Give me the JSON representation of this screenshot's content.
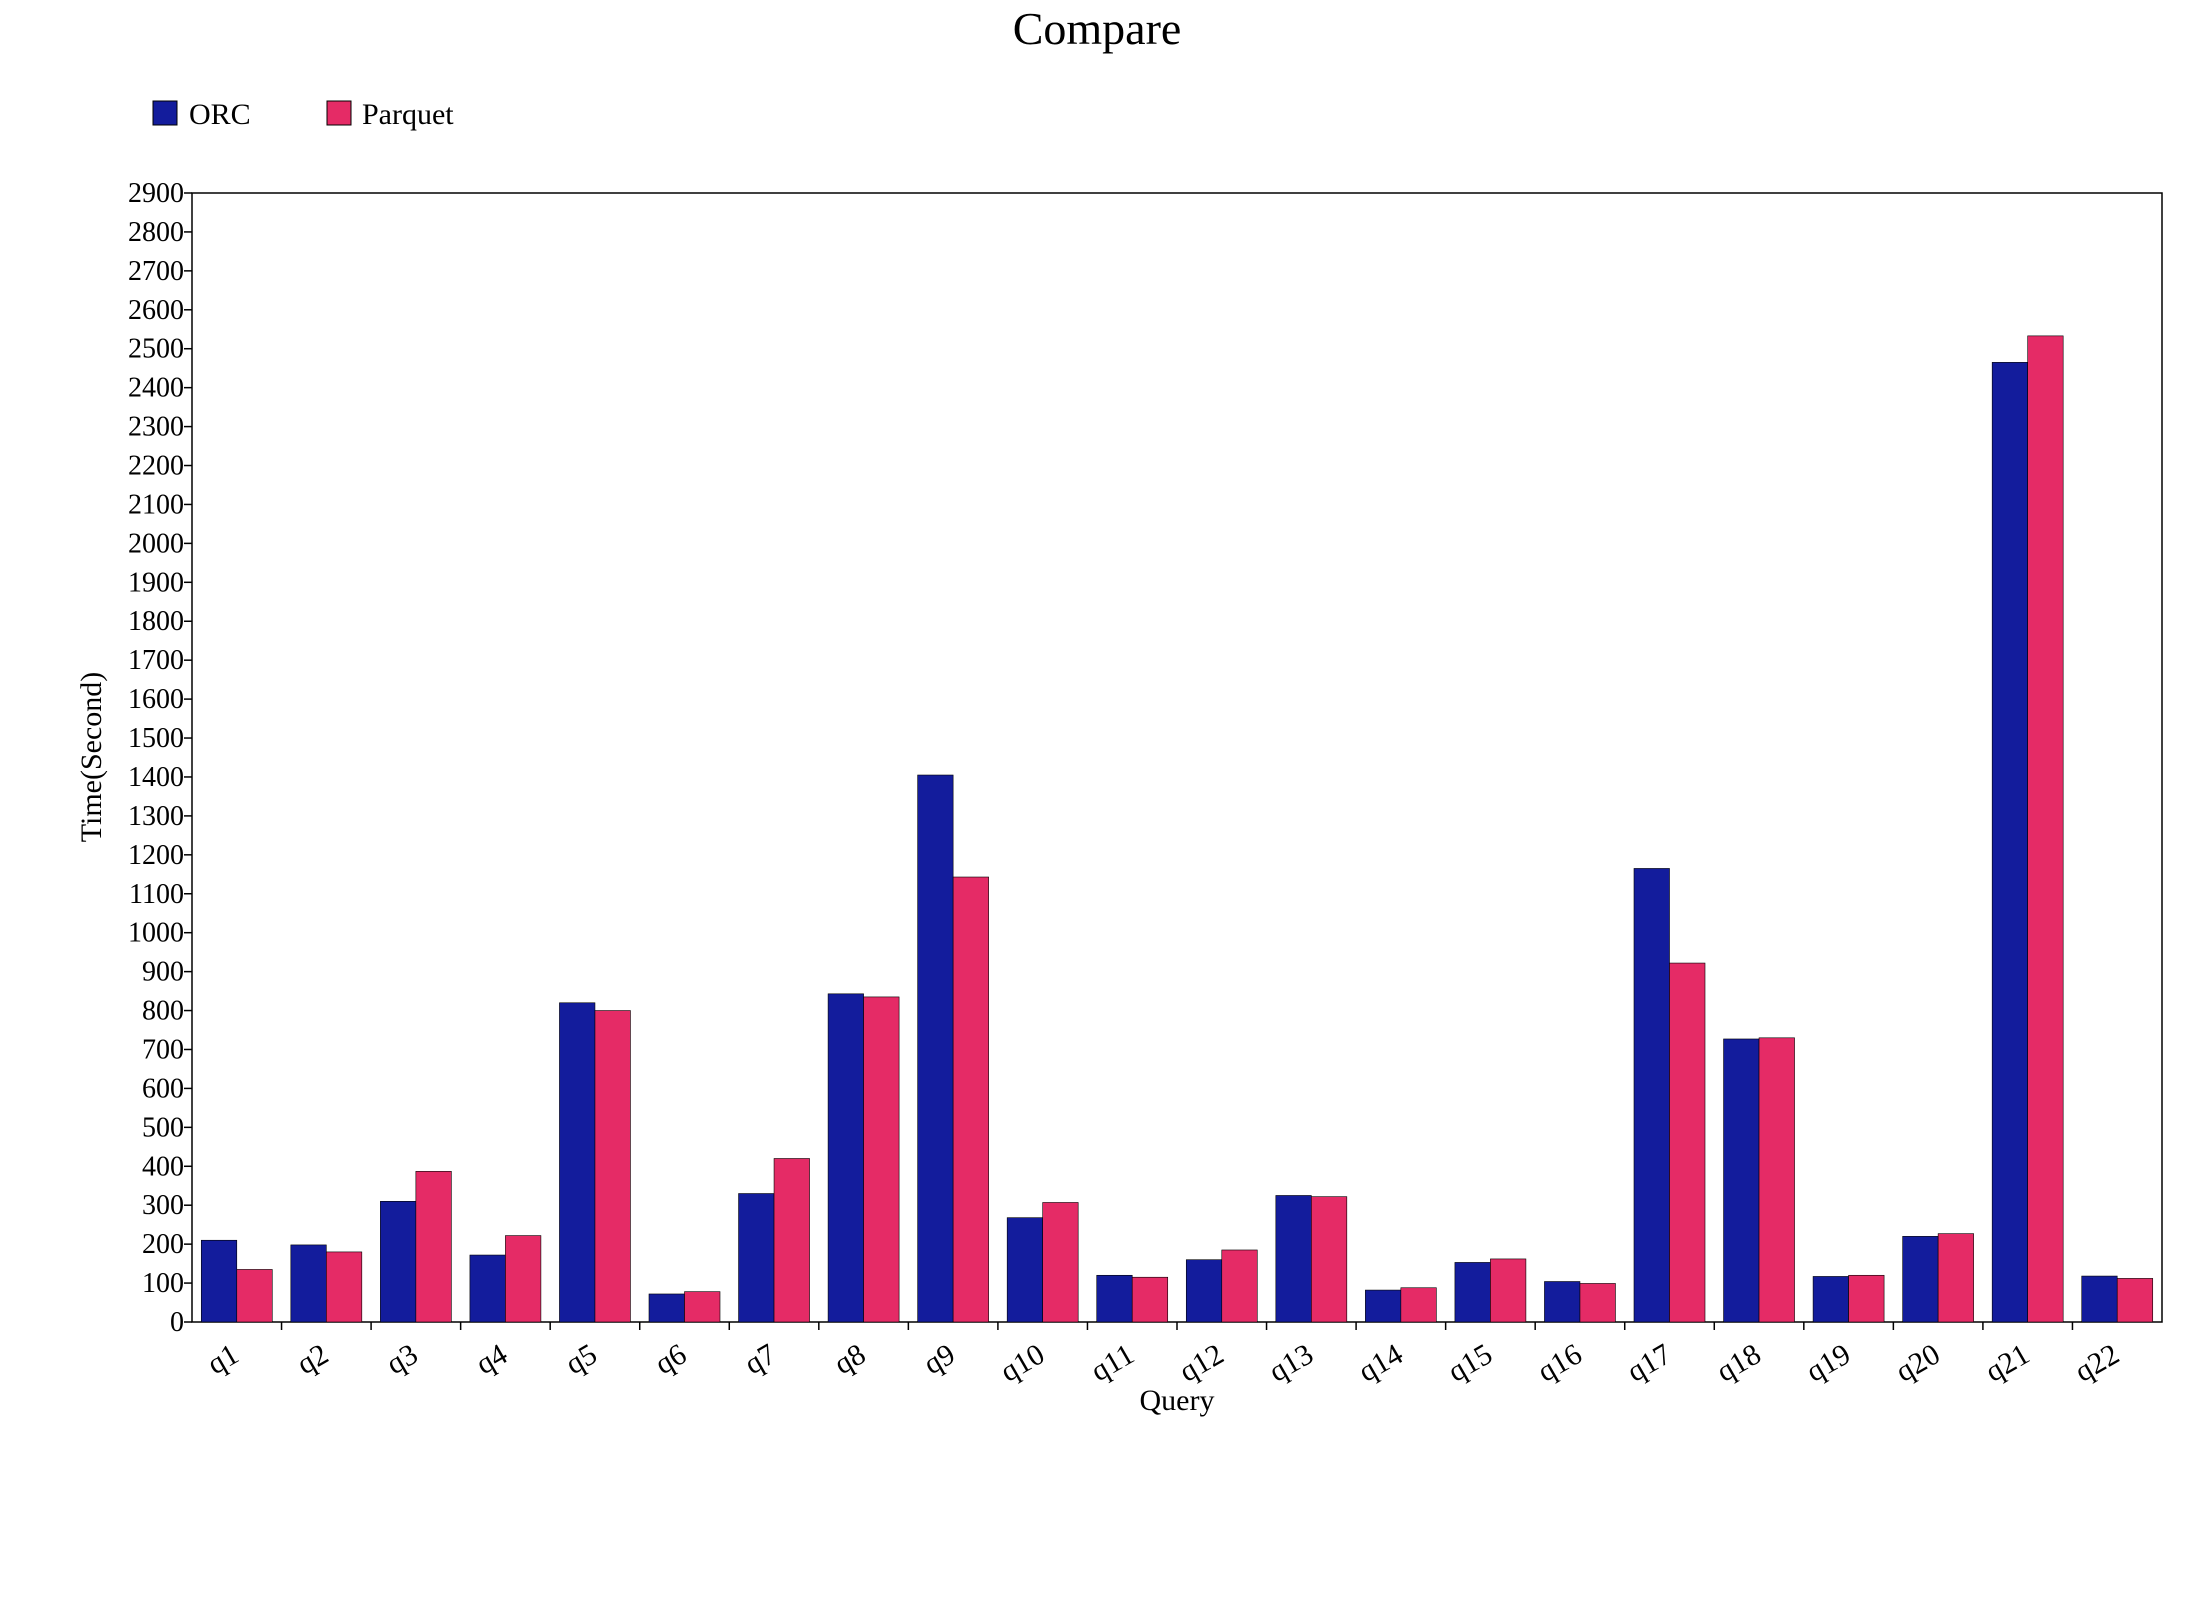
{
  "chart_data": {
    "type": "bar",
    "title": "Compare",
    "xlabel": "Query",
    "ylabel": "Time(Second)",
    "ylim": [
      0,
      2900
    ],
    "ytick_step": 100,
    "categories": [
      "q1",
      "q2",
      "q3",
      "q4",
      "q5",
      "q6",
      "q7",
      "q8",
      "q9",
      "q10",
      "q11",
      "q12",
      "q13",
      "q14",
      "q15",
      "q16",
      "q17",
      "q18",
      "q19",
      "q20",
      "q21",
      "q22"
    ],
    "series": [
      {
        "name": "ORC",
        "color": "#131c9c",
        "values": [
          210,
          198,
          310,
          172,
          820,
          72,
          330,
          843,
          1405,
          268,
          120,
          160,
          325,
          82,
          153,
          104,
          1165,
          727,
          117,
          220,
          2465,
          118
        ]
      },
      {
        "name": "Parquet",
        "color": "#e52b66",
        "values": [
          135,
          180,
          387,
          222,
          800,
          78,
          420,
          835,
          1143,
          307,
          115,
          185,
          322,
          88,
          162,
          99,
          922,
          730,
          120,
          227,
          2533,
          112
        ]
      }
    ],
    "legend_position": "top-left",
    "grid": false
  }
}
